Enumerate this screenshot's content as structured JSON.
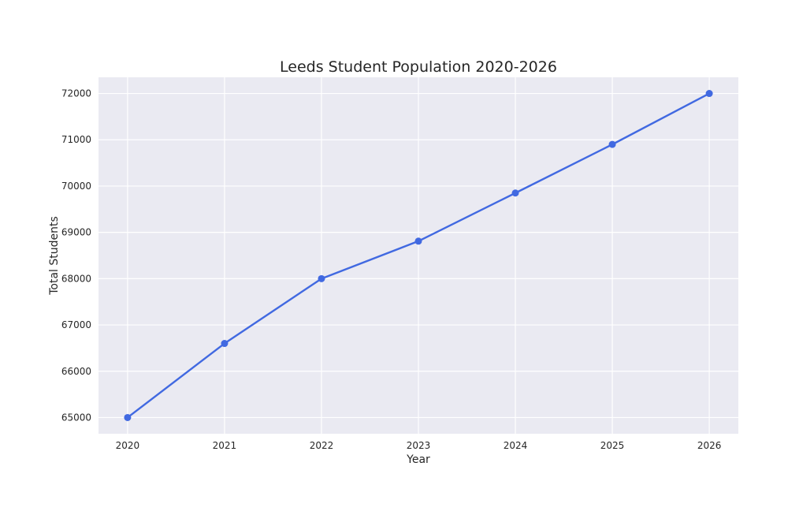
{
  "chart_data": {
    "type": "line",
    "title": "Leeds Student Population 2020-2026",
    "xlabel": "Year",
    "ylabel": "Total Students",
    "x": [
      2020,
      2021,
      2022,
      2023,
      2024,
      2025,
      2026
    ],
    "series": [
      {
        "values": [
          65000,
          66600,
          68000,
          68810,
          69850,
          70900,
          72000
        ]
      }
    ],
    "xticks": [
      "2020",
      "2021",
      "2022",
      "2023",
      "2024",
      "2025",
      "2026"
    ],
    "yticks": [
      "65000",
      "66000",
      "67000",
      "68000",
      "69000",
      "70000",
      "71000",
      "72000"
    ],
    "xlim": [
      2019.7,
      2026.3
    ],
    "ylim": [
      64650,
      72350
    ],
    "grid": true,
    "colors": {
      "line": "#4169e1",
      "plot_bg": "#eaeaf2"
    }
  }
}
